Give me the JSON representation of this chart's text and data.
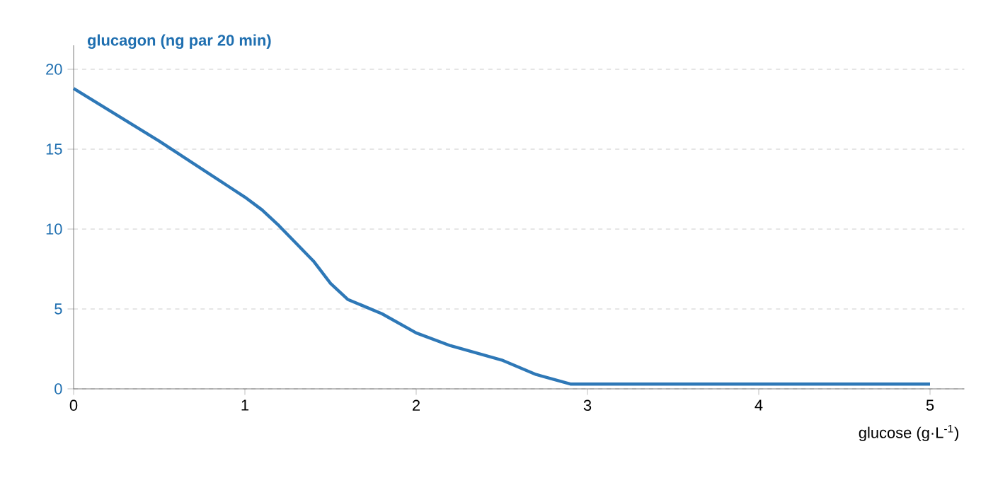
{
  "chart_data": {
    "type": "line",
    "xlabel": "glucose (g·L$^{-1}$)",
    "ylabel": "glucagon (ng par 20 min)",
    "x": [
      0,
      0.5,
      0.9,
      1.0,
      1.1,
      1.2,
      1.4,
      1.5,
      1.6,
      1.8,
      2.0,
      2.2,
      2.5,
      2.7,
      2.9,
      3.0,
      4.0,
      5.0
    ],
    "values": [
      18.8,
      15.5,
      12.7,
      12.0,
      11.2,
      10.2,
      8.0,
      6.6,
      5.6,
      4.7,
      3.5,
      2.7,
      1.8,
      0.9,
      0.3,
      0.3,
      0.3,
      0.3
    ],
    "color": "#2e78b7",
    "xlim": [
      0,
      5.2
    ],
    "ylim": [
      0,
      21.5
    ],
    "xticks": [
      0,
      1,
      2,
      3,
      4,
      5
    ],
    "yticks": [
      0,
      5,
      10,
      15,
      20
    ],
    "grid": "y",
    "line_style": "solid"
  }
}
